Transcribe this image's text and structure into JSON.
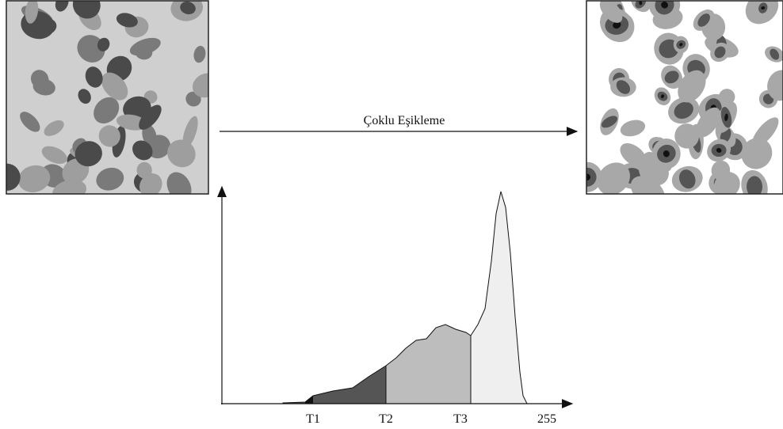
{
  "arrow_label": "Çoklu Eşikleme",
  "histogram": {
    "thresholds": [
      "T1",
      "T2",
      "T3"
    ],
    "axis_max": "255"
  }
}
